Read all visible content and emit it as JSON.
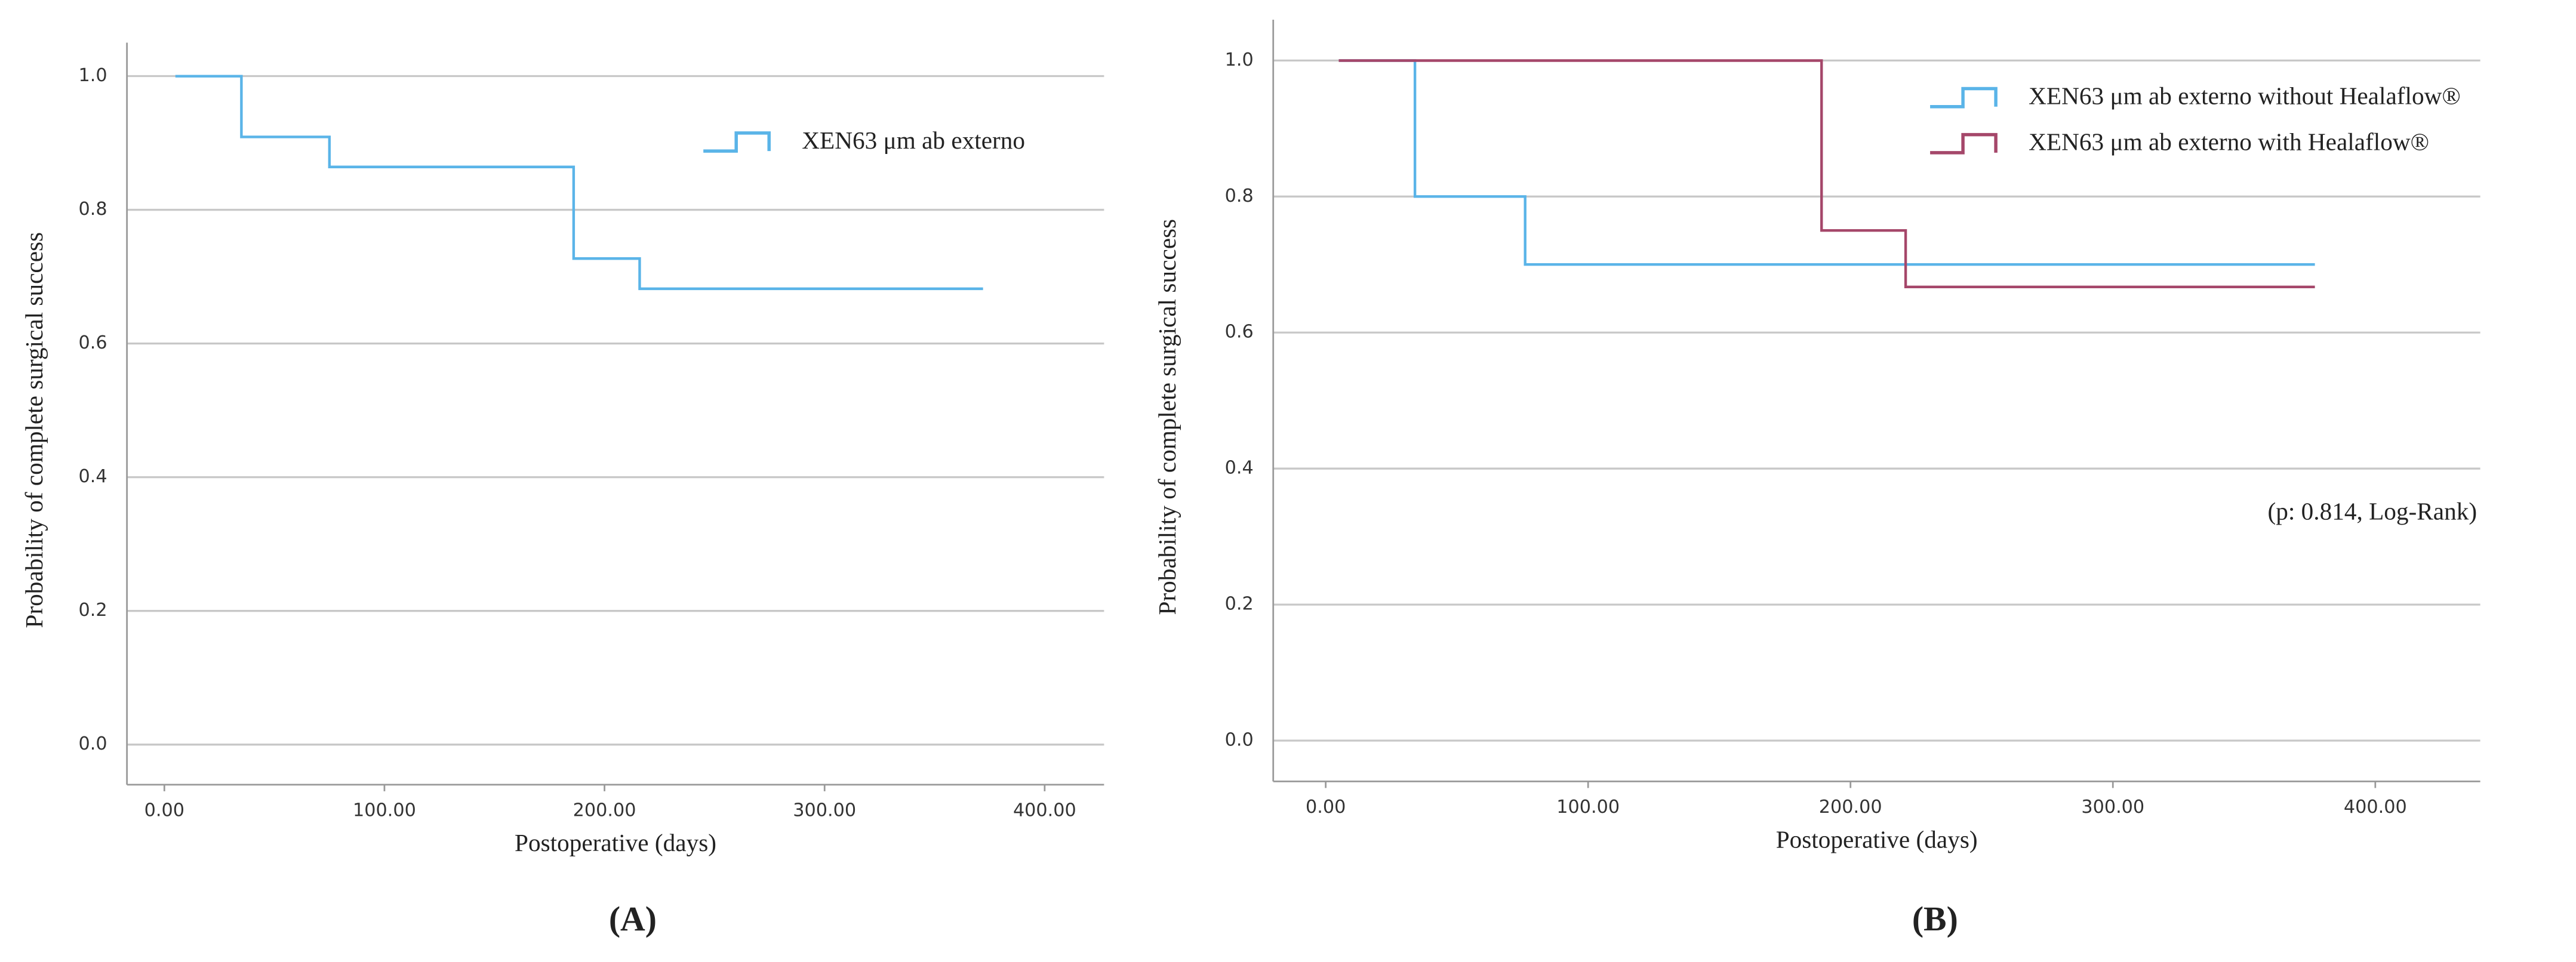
{
  "chart_data": [
    {
      "type": "step",
      "panel": "(A)",
      "xlabel": "Postoperative (days)",
      "ylabel": "Probability of complete surgical success",
      "xlim": [
        -17,
        427
      ],
      "ylim": [
        -0.06,
        1.05
      ],
      "xticks": [
        {
          "value": 0,
          "label": "0.00"
        },
        {
          "value": 100,
          "label": "100.00"
        },
        {
          "value": 200,
          "label": "200.00"
        },
        {
          "value": 300,
          "label": "300.00"
        },
        {
          "value": 400,
          "label": "400.00"
        }
      ],
      "yticks": [
        {
          "value": 0,
          "label": "0.0"
        },
        {
          "value": 0.2,
          "label": "0.2"
        },
        {
          "value": 0.4,
          "label": "0.4"
        },
        {
          "value": 0.6,
          "label": "0.6"
        },
        {
          "value": 0.8,
          "label": "0.8"
        },
        {
          "value": 1,
          "label": "1.0"
        }
      ],
      "grid": true,
      "legend": "upper right",
      "series": [
        {
          "name": "XEN63 μm ab externo",
          "color": "#5ab4e8",
          "x": [
            5,
            35,
            35,
            75,
            75,
            186,
            186,
            216,
            216,
            372
          ],
          "values": [
            1,
            1,
            0.909,
            0.909,
            0.864,
            0.864,
            0.727,
            0.727,
            0.682,
            0.682
          ]
        }
      ]
    },
    {
      "type": "step",
      "panel": "(B)",
      "xlabel": "Postoperative (days)",
      "ylabel": "Probability of complete surgical success",
      "xlim": [
        -20,
        440
      ],
      "ylim": [
        -0.06,
        1.06
      ],
      "xticks": [
        {
          "value": 0,
          "label": "0.00"
        },
        {
          "value": 100,
          "label": "100.00"
        },
        {
          "value": 200,
          "label": "200.00"
        },
        {
          "value": 300,
          "label": "300.00"
        },
        {
          "value": 400,
          "label": "400.00"
        }
      ],
      "yticks": [
        {
          "value": 0,
          "label": "0.0"
        },
        {
          "value": 0.2,
          "label": "0.2"
        },
        {
          "value": 0.4,
          "label": "0.4"
        },
        {
          "value": 0.6,
          "label": "0.6"
        },
        {
          "value": 0.8,
          "label": "0.8"
        },
        {
          "value": 1,
          "label": "1.0"
        }
      ],
      "grid": true,
      "legend": "upper right",
      "annotation": "(p: 0.814, Log-Rank)",
      "series": [
        {
          "name": "XEN63 μm ab externo without Healaflow®",
          "color": "#5ab4e8",
          "x": [
            5,
            34,
            34,
            76,
            76,
            377
          ],
          "values": [
            1,
            1,
            0.8,
            0.8,
            0.7,
            0.7
          ]
        },
        {
          "name": "XEN63 μm ab externo with Healaflow®",
          "color": "#a5476a",
          "x": [
            5,
            189,
            189,
            221,
            221,
            377
          ],
          "values": [
            1,
            1,
            0.75,
            0.75,
            0.667,
            0.667
          ]
        }
      ]
    }
  ]
}
